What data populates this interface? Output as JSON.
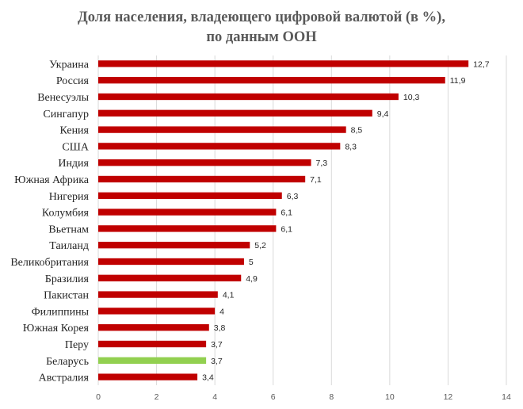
{
  "chart_data": {
    "type": "bar",
    "orientation": "horizontal",
    "title_line1": "Доля населения, владеющего цифровой валютой (в %),",
    "title_line2": "по данным ООН",
    "categories": [
      "Украина",
      "Россия",
      "Венесуэлы",
      "Сингапур",
      "Кения",
      "США",
      "Индия",
      "Южная Африка",
      "Нигерия",
      "Колумбия",
      "Вьетнам",
      "Таиланд",
      "Великобритания",
      "Бразилия",
      "Пакистан",
      "Филиппины",
      "Южная Корея",
      "Перу",
      "Беларусь",
      "Австралия"
    ],
    "values": [
      12.7,
      11.9,
      10.3,
      9.4,
      8.5,
      8.3,
      7.3,
      7.1,
      6.3,
      6.1,
      6.1,
      5.2,
      5,
      4.9,
      4.1,
      4,
      3.8,
      3.7,
      3.7,
      3.4
    ],
    "value_labels": [
      "12,7",
      "11,9",
      "10,3",
      "9,4",
      "8,5",
      "8,3",
      "7,3",
      "7,1",
      "6,3",
      "6,1",
      "6,1",
      "5,2",
      "5",
      "4,9",
      "4,1",
      "4",
      "3,8",
      "3,7",
      "3,7",
      "3,4"
    ],
    "xlim": [
      0,
      14
    ],
    "xticks": [
      0,
      2,
      4,
      6,
      8,
      10,
      12,
      14
    ],
    "grid": true,
    "legend": "none",
    "bar_color": "#c00000",
    "highlight_category": "Беларусь",
    "highlight_color": "#92d050"
  }
}
